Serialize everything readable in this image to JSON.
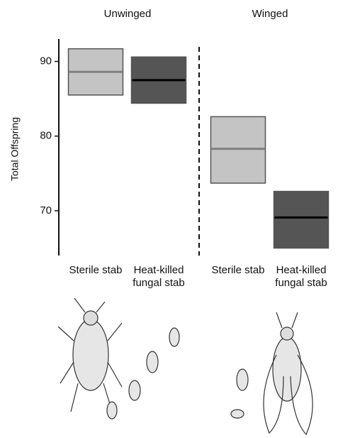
{
  "chart_data": {
    "type": "box",
    "ylabel": "Total Offspring",
    "groups": [
      "Unwinged",
      "Winged"
    ],
    "series": [
      {
        "group": 0,
        "category": "Sterile stab",
        "color": "#c4c4c4",
        "line_color": "#808080",
        "low": 85.5,
        "mean": 88.6,
        "high": 91.7
      },
      {
        "group": 0,
        "category": "Heat-killed fungal stab",
        "color": "#555555",
        "line_color": "#000000",
        "low": 84.4,
        "mean": 87.5,
        "high": 90.6
      },
      {
        "group": 1,
        "category": "Sterile stab",
        "color": "#c4c4c4",
        "line_color": "#808080",
        "low": 73.7,
        "mean": 78.3,
        "high": 82.6
      },
      {
        "group": 1,
        "category": "Heat-killed fungal stab",
        "color": "#555555",
        "line_color": "#000000",
        "low": 65.0,
        "mean": 69.1,
        "high": 72.6
      }
    ],
    "ylim": [
      64,
      93
    ],
    "yticks": [
      70,
      80,
      90
    ]
  }
}
